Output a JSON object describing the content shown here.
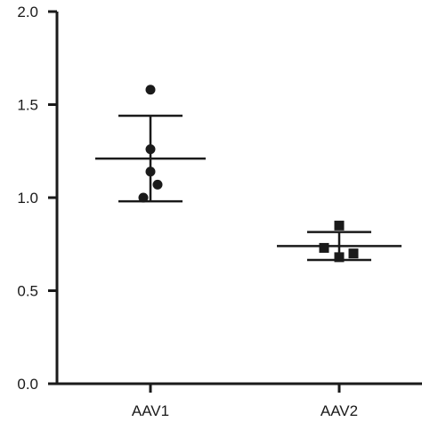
{
  "chart_data": {
    "type": "scatter",
    "title": "",
    "xlabel": "",
    "ylabel": "",
    "categories": [
      "AAV1",
      "AAV2"
    ],
    "ylim": [
      0,
      2.0
    ],
    "yticks": [
      "0.0",
      "0.5",
      "1.0",
      "1.5",
      "2.0"
    ],
    "grid": false,
    "series": [
      {
        "category": "AAV1",
        "marker": "circle",
        "points": [
          1.58,
          1.26,
          1.14,
          1.07,
          1.0
        ],
        "mean": 1.21,
        "sd_upper": 1.44,
        "sd_lower": 0.98
      },
      {
        "category": "AAV2",
        "marker": "square",
        "points": [
          0.85,
          0.73,
          0.7,
          0.68
        ],
        "mean": 0.74,
        "sd_upper": 0.815,
        "sd_lower": 0.665
      }
    ],
    "colors": {
      "marks": "#1a1a1a",
      "axis": "#1a1a1a"
    }
  }
}
